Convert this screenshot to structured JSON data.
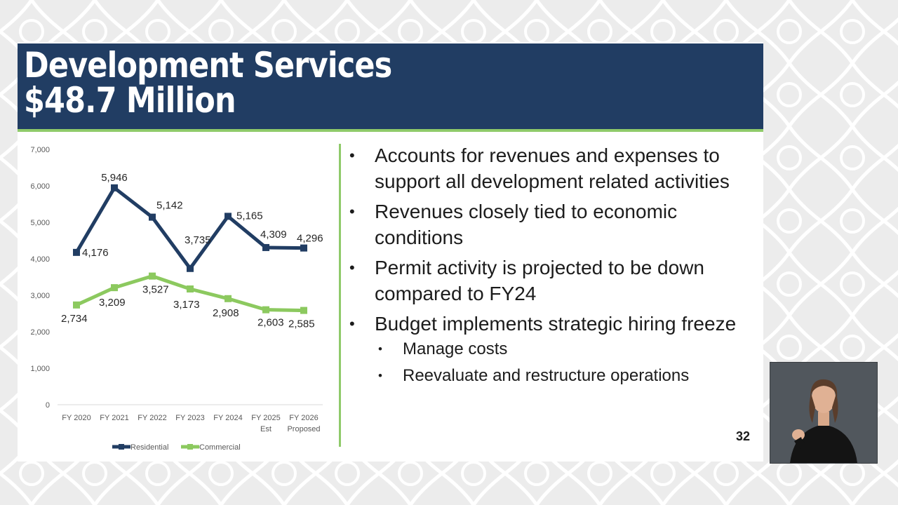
{
  "slide": {
    "title_line1": "Development Services",
    "title_line2": "$48.7 Million",
    "slide_number": "32"
  },
  "bullets": [
    {
      "level": 1,
      "text": "Accounts for revenues and expenses to support all development related activities"
    },
    {
      "level": 1,
      "text": "Revenues closely tied to economic conditions"
    },
    {
      "level": 1,
      "text": "Permit activity is projected to be down compared to FY24"
    },
    {
      "level": 1,
      "text": "Budget implements strategic hiring freeze"
    },
    {
      "level": 2,
      "text": "Manage costs"
    },
    {
      "level": 2,
      "text": "Reevaluate and restructure operations"
    }
  ],
  "chart_data": {
    "type": "line",
    "categories": [
      [
        "FY 2020"
      ],
      [
        "FY 2021"
      ],
      [
        "FY 2022"
      ],
      [
        "FY 2023"
      ],
      [
        "FY 2024"
      ],
      [
        "FY 2025",
        "Est"
      ],
      [
        "FY 2026",
        "Proposed"
      ]
    ],
    "yticks": [
      "0",
      "1,000",
      "2,000",
      "3,000",
      "4,000",
      "5,000",
      "6,000",
      "7,000"
    ],
    "ylim": [
      0,
      7000
    ],
    "grid": false,
    "legend_position": "bottom",
    "series": [
      {
        "name": "Residential",
        "color": "#213d63",
        "values": [
          4176,
          5946,
          5142,
          3735,
          5165,
          4309,
          4296
        ],
        "labels": [
          "4,176",
          "5,946",
          "5,142",
          "3,735",
          "5,165",
          "4,309",
          "4,296"
        ]
      },
      {
        "name": "Commercial",
        "color": "#8cc95f",
        "values": [
          2734,
          3209,
          3527,
          3173,
          2908,
          2603,
          2585
        ],
        "labels": [
          "2,734",
          "3,209",
          "3,527",
          "3,173",
          "2,908",
          "2,603",
          "2,585"
        ]
      }
    ]
  },
  "colors": {
    "title_bar": "#213d63",
    "accent_green": "#8fca6a"
  }
}
